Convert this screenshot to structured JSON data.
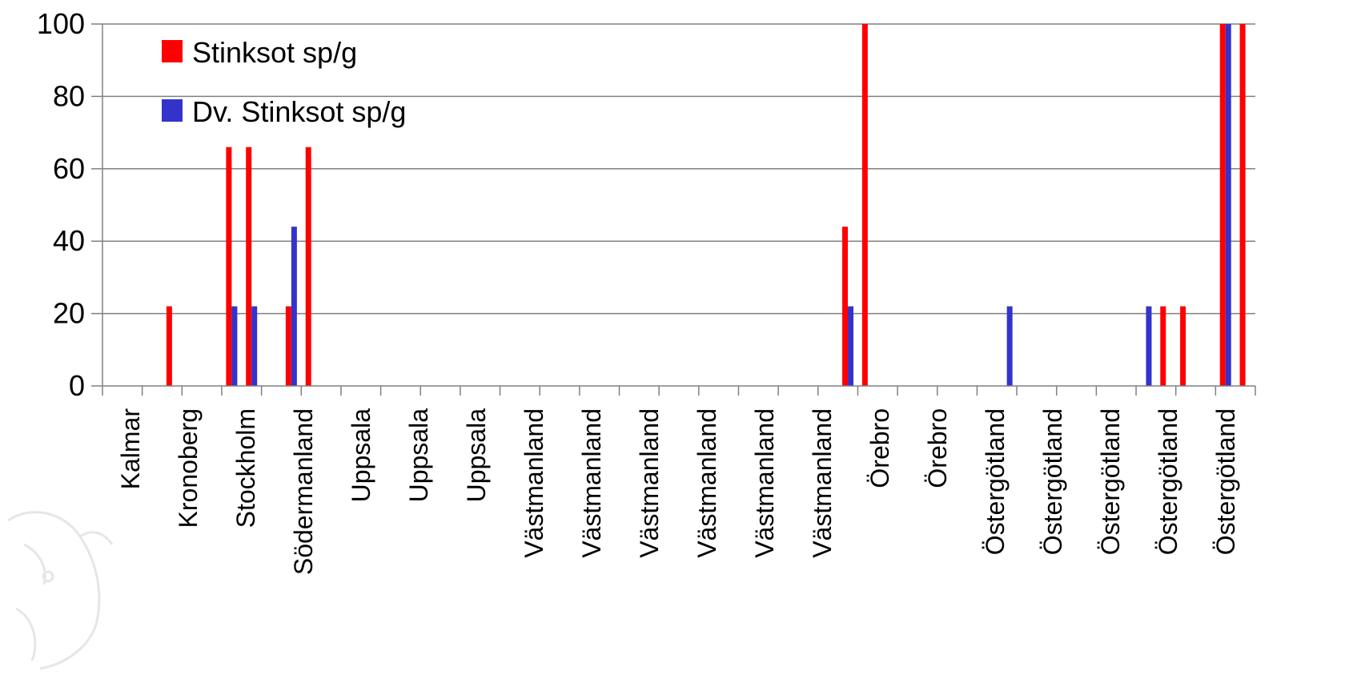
{
  "chart_data": {
    "type": "bar",
    "title": "",
    "xlabel": "",
    "ylabel": "",
    "ylim": [
      0,
      100
    ],
    "yticks": [
      0,
      20,
      40,
      60,
      80,
      100
    ],
    "grid": true,
    "legend_position": "top-left",
    "category_labels": [
      "Kalmar",
      "Kronoberg",
      "Stockholm",
      "Södermanland",
      "Uppsala",
      "Uppsala",
      "Uppsala",
      "Västmanland",
      "Västmanland",
      "Västmanland",
      "Västmanland",
      "Västmanland",
      "Västmanland",
      "Örebro",
      "Örebro",
      "Östergötland",
      "Östergötland",
      "Östergötland",
      "Östergötland",
      "Östergötland"
    ],
    "num_slots": 58,
    "series": [
      {
        "name": "Stinksot sp/g",
        "color": "#ff0000",
        "values": [
          0,
          0,
          0,
          22,
          0,
          0,
          66,
          66,
          0,
          22,
          66,
          0,
          0,
          0,
          0,
          0,
          0,
          0,
          0,
          0,
          0,
          0,
          0,
          0,
          0,
          0,
          0,
          0,
          0,
          0,
          0,
          0,
          0,
          0,
          0,
          0,
          0,
          44,
          100,
          0,
          0,
          0,
          0,
          0,
          0,
          0,
          0,
          0,
          0,
          0,
          0,
          0,
          0,
          22,
          22,
          0,
          100,
          100
        ]
      },
      {
        "name": "Dv. Stinksot sp/g",
        "color": "#3333cc",
        "values": [
          0,
          0,
          0,
          0,
          0,
          0,
          22,
          22,
          0,
          44,
          0,
          0,
          0,
          0,
          0,
          0,
          0,
          0,
          0,
          0,
          0,
          0,
          0,
          0,
          0,
          0,
          0,
          0,
          0,
          0,
          0,
          0,
          0,
          0,
          0,
          0,
          0,
          22,
          0,
          0,
          0,
          0,
          0,
          0,
          0,
          22,
          0,
          0,
          0,
          0,
          0,
          0,
          22,
          0,
          0,
          0,
          100,
          0
        ]
      }
    ]
  }
}
